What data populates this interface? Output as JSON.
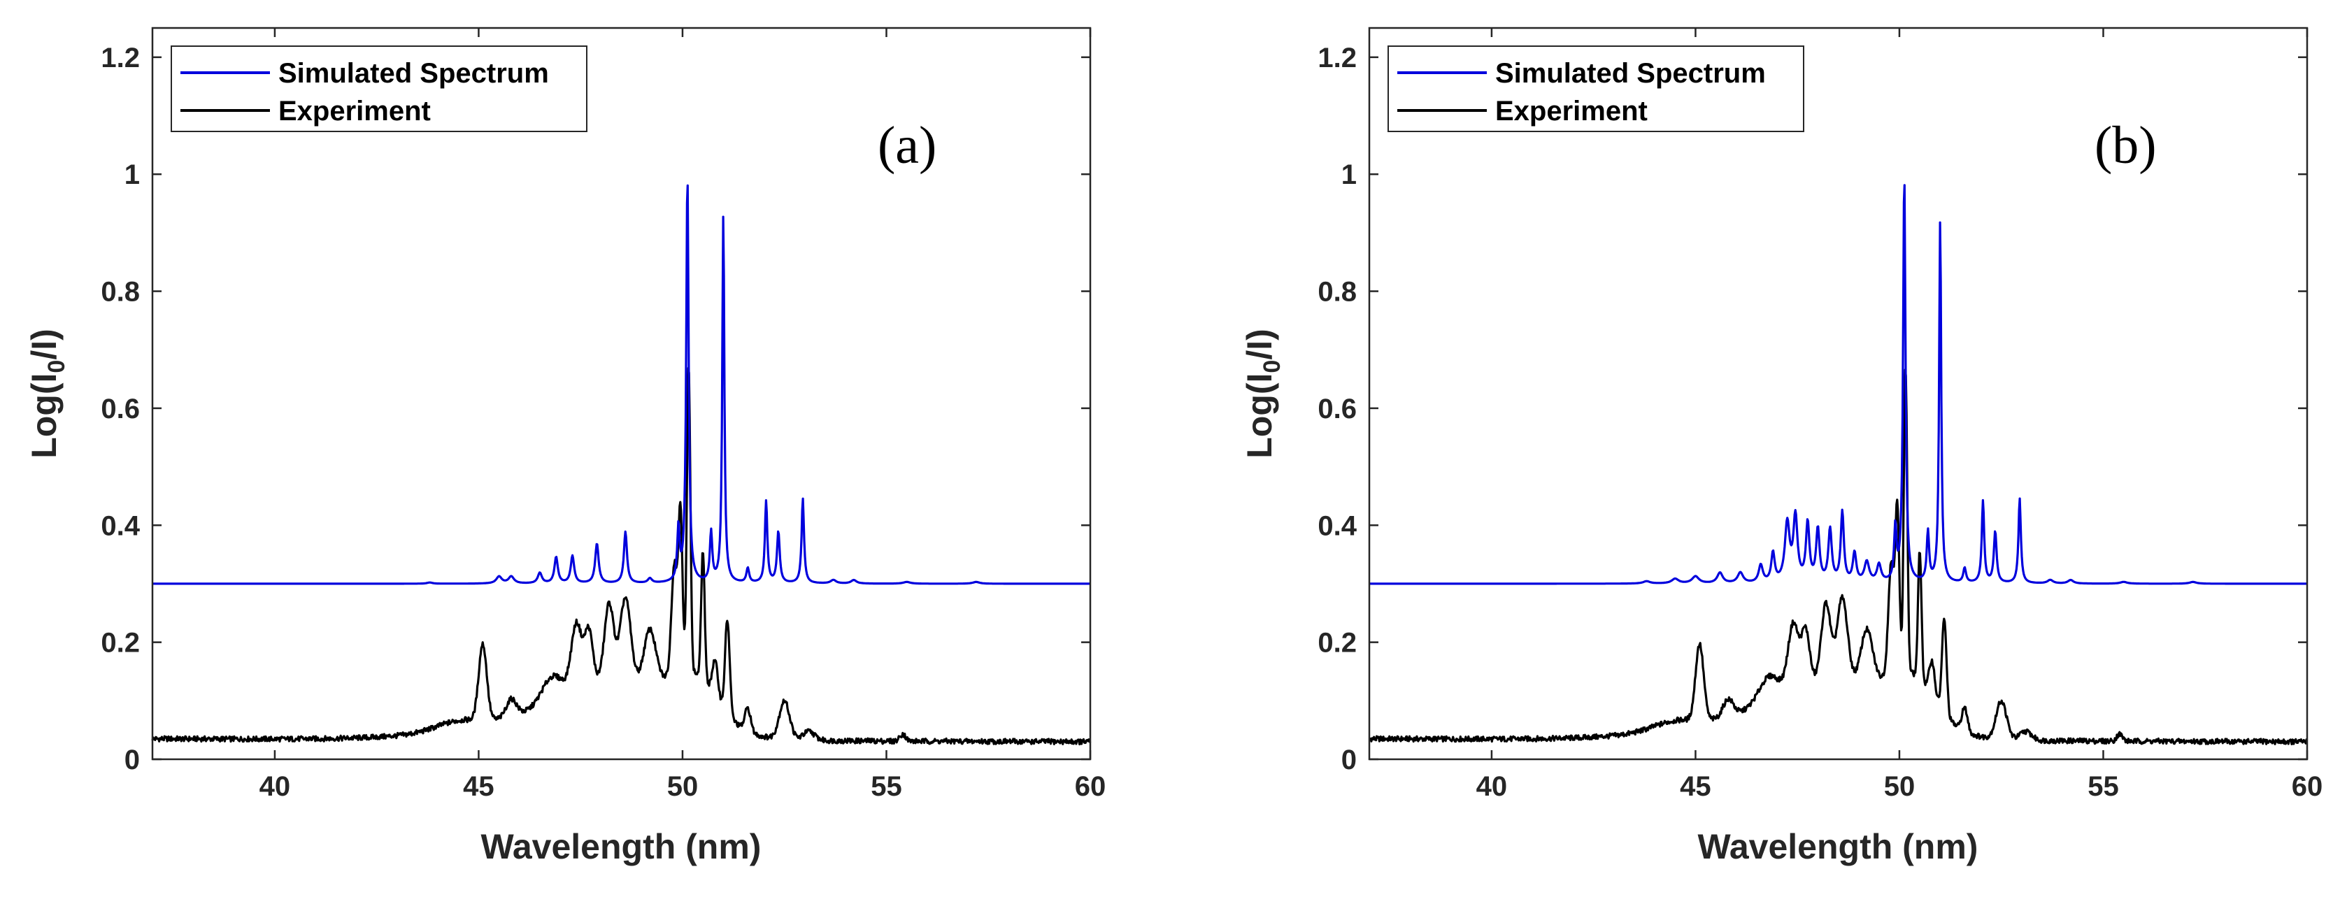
{
  "figure": {
    "panels": [
      "(a)",
      "(b)"
    ]
  },
  "chart_data": [
    {
      "type": "line",
      "panel_label": "(a)",
      "xlabel": "Wavelength (nm)",
      "ylabel_main": "Log(I",
      "ylabel_sub": "0",
      "ylabel_tail": "/I)",
      "xlim": [
        37,
        60
      ],
      "ylim": [
        0,
        1.25
      ],
      "xticks": [
        40,
        45,
        50,
        55,
        60
      ],
      "yticks": [
        0,
        0.2,
        0.4,
        0.6,
        0.8,
        1,
        1.2
      ],
      "xtick_labels": [
        "40",
        "45",
        "50",
        "55",
        "60"
      ],
      "ytick_labels": [
        "0",
        "0.2",
        "0.4",
        "0.6",
        "0.8",
        "1",
        "1.2"
      ],
      "legend": [
        "Simulated Spectrum",
        "Experiment"
      ],
      "legend_position": "top-left",
      "series": [
        {
          "name": "Simulated Spectrum",
          "color": "#0000dd",
          "baseline": 0.3,
          "peaks": [
            [
              43.8,
              0.002,
              0.08
            ],
            [
              45.5,
              0.012,
              0.08
            ],
            [
              45.8,
              0.012,
              0.08
            ],
            [
              46.5,
              0.018,
              0.06
            ],
            [
              46.9,
              0.045,
              0.05
            ],
            [
              47.3,
              0.047,
              0.05
            ],
            [
              47.9,
              0.068,
              0.05
            ],
            [
              48.6,
              0.088,
              0.045
            ],
            [
              49.2,
              0.008,
              0.06
            ],
            [
              49.9,
              0.09,
              0.035
            ],
            [
              50.12,
              0.7,
              0.035
            ],
            [
              50.7,
              0.085,
              0.035
            ],
            [
              51.0,
              0.63,
              0.03
            ],
            [
              51.6,
              0.025,
              0.04
            ],
            [
              52.05,
              0.14,
              0.035
            ],
            [
              52.35,
              0.088,
              0.04
            ],
            [
              52.95,
              0.145,
              0.035
            ],
            [
              53.7,
              0.006,
              0.08
            ],
            [
              54.2,
              0.006,
              0.08
            ],
            [
              55.5,
              0.003,
              0.1
            ],
            [
              57.2,
              0.003,
              0.1
            ]
          ]
        },
        {
          "name": "Experiment",
          "color": "#000000",
          "baseline_start": 0.035,
          "baseline_end": 0.03,
          "peaks": [
            [
              44.5,
              0.015,
              0.8
            ],
            [
              45.1,
              0.13,
              0.14
            ],
            [
              45.8,
              0.03,
              0.18
            ],
            [
              46.8,
              0.04,
              0.35
            ],
            [
              47.4,
              0.11,
              0.18
            ],
            [
              47.7,
              0.09,
              0.14
            ],
            [
              48.2,
              0.13,
              0.16
            ],
            [
              48.6,
              0.14,
              0.18
            ],
            [
              49.2,
              0.09,
              0.2
            ],
            [
              49.8,
              0.19,
              0.1
            ],
            [
              49.95,
              0.27,
              0.07
            ],
            [
              50.15,
              0.52,
              0.06
            ],
            [
              50.5,
              0.22,
              0.06
            ],
            [
              50.8,
              0.06,
              0.1
            ],
            [
              51.1,
              0.16,
              0.08
            ],
            [
              51.6,
              0.04,
              0.1
            ],
            [
              52.5,
              0.065,
              0.18
            ],
            [
              53.1,
              0.015,
              0.2
            ],
            [
              55.4,
              0.012,
              0.1
            ]
          ],
          "humps": [
            [
              48.5,
              0.08,
              2.0
            ],
            [
              50.3,
              0.07,
              0.8
            ]
          ]
        }
      ]
    },
    {
      "type": "line",
      "panel_label": "(b)",
      "xlabel": "Wavelength (nm)",
      "ylabel_main": "Log(I",
      "ylabel_sub": "0",
      "ylabel_tail": "/I)",
      "xlim": [
        37,
        60
      ],
      "ylim": [
        0,
        1.25
      ],
      "xticks": [
        40,
        45,
        50,
        55,
        60
      ],
      "yticks": [
        0,
        0.2,
        0.4,
        0.6,
        0.8,
        1,
        1.2
      ],
      "xtick_labels": [
        "40",
        "45",
        "50",
        "55",
        "60"
      ],
      "ytick_labels": [
        "0",
        "0.2",
        "0.4",
        "0.6",
        "0.8",
        "1",
        "1.2"
      ],
      "legend": [
        "Simulated Spectrum",
        "Experiment"
      ],
      "legend_position": "top-left",
      "series": [
        {
          "name": "Simulated Spectrum",
          "color": "#0000dd",
          "baseline": 0.3,
          "peaks": [
            [
              43.8,
              0.004,
              0.1
            ],
            [
              44.5,
              0.008,
              0.1
            ],
            [
              45.0,
              0.012,
              0.1
            ],
            [
              45.6,
              0.018,
              0.08
            ],
            [
              46.1,
              0.018,
              0.08
            ],
            [
              46.6,
              0.03,
              0.06
            ],
            [
              46.9,
              0.05,
              0.05
            ],
            [
              47.25,
              0.1,
              0.07
            ],
            [
              47.45,
              0.11,
              0.06
            ],
            [
              47.75,
              0.1,
              0.05
            ],
            [
              48.0,
              0.09,
              0.05
            ],
            [
              48.3,
              0.09,
              0.05
            ],
            [
              48.6,
              0.12,
              0.045
            ],
            [
              48.9,
              0.05,
              0.05
            ],
            [
              49.2,
              0.035,
              0.07
            ],
            [
              49.5,
              0.03,
              0.06
            ],
            [
              49.9,
              0.09,
              0.035
            ],
            [
              50.12,
              0.7,
              0.035
            ],
            [
              50.7,
              0.085,
              0.035
            ],
            [
              51.0,
              0.62,
              0.03
            ],
            [
              51.6,
              0.025,
              0.04
            ],
            [
              52.05,
              0.14,
              0.035
            ],
            [
              52.35,
              0.088,
              0.04
            ],
            [
              52.95,
              0.145,
              0.035
            ],
            [
              53.7,
              0.006,
              0.08
            ],
            [
              54.2,
              0.006,
              0.08
            ],
            [
              55.5,
              0.003,
              0.1
            ],
            [
              57.2,
              0.003,
              0.1
            ]
          ]
        },
        {
          "name": "Experiment",
          "color": "#000000",
          "baseline_start": 0.035,
          "baseline_end": 0.03,
          "peaks": [
            [
              44.5,
              0.015,
              0.8
            ],
            [
              45.1,
              0.13,
              0.14
            ],
            [
              45.8,
              0.03,
              0.18
            ],
            [
              46.8,
              0.04,
              0.35
            ],
            [
              47.4,
              0.11,
              0.18
            ],
            [
              47.7,
              0.09,
              0.14
            ],
            [
              48.2,
              0.13,
              0.16
            ],
            [
              48.6,
              0.14,
              0.18
            ],
            [
              49.2,
              0.09,
              0.2
            ],
            [
              49.8,
              0.19,
              0.1
            ],
            [
              49.95,
              0.27,
              0.07
            ],
            [
              50.15,
              0.52,
              0.06
            ],
            [
              50.5,
              0.22,
              0.06
            ],
            [
              50.8,
              0.06,
              0.1
            ],
            [
              51.1,
              0.16,
              0.08
            ],
            [
              51.6,
              0.04,
              0.1
            ],
            [
              52.5,
              0.065,
              0.18
            ],
            [
              53.1,
              0.015,
              0.2
            ],
            [
              55.4,
              0.012,
              0.1
            ]
          ],
          "humps": [
            [
              48.5,
              0.08,
              2.0
            ],
            [
              50.3,
              0.07,
              0.8
            ]
          ]
        }
      ]
    }
  ]
}
